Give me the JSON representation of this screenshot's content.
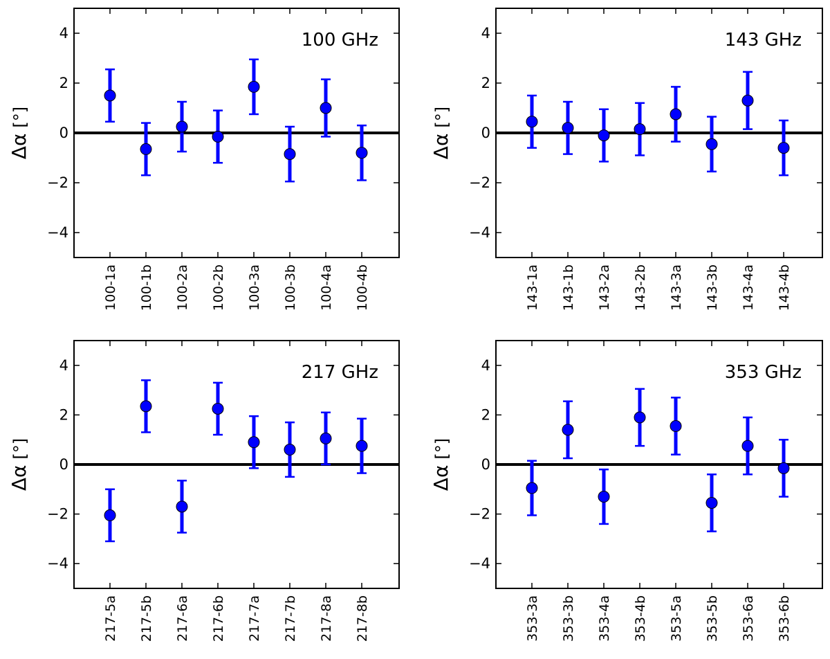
{
  "chart_data": [
    {
      "type": "scatter",
      "title": "100 GHz",
      "ylabel": {
        "symbol": "Δα",
        "unit": "[°]"
      },
      "ylim": [
        -5,
        5
      ],
      "yticks": [
        -4,
        -2,
        0,
        2,
        4
      ],
      "ytick_labels": [
        "−4",
        "−2",
        "0",
        "2",
        "4"
      ],
      "reference_line": 0,
      "categories": [
        "100-1a",
        "100-1b",
        "100-2a",
        "100-2b",
        "100-3a",
        "100-3b",
        "100-4a",
        "100-4b"
      ],
      "values": [
        1.5,
        -0.65,
        0.25,
        -0.15,
        1.85,
        -0.85,
        1.0,
        -0.8
      ],
      "errors": [
        1.05,
        1.05,
        1.0,
        1.05,
        1.1,
        1.1,
        1.15,
        1.1
      ],
      "point_color": "#0000ff",
      "error_color": "#0000ff"
    },
    {
      "type": "scatter",
      "title": "143 GHz",
      "ylabel": {
        "symbol": "Δα",
        "unit": "[°]"
      },
      "ylim": [
        -5,
        5
      ],
      "yticks": [
        -4,
        -2,
        0,
        2,
        4
      ],
      "ytick_labels": [
        "−4",
        "−2",
        "0",
        "2",
        "4"
      ],
      "reference_line": 0,
      "categories": [
        "143-1a",
        "143-1b",
        "143-2a",
        "143-2b",
        "143-3a",
        "143-3b",
        "143-4a",
        "143-4b"
      ],
      "values": [
        0.45,
        0.2,
        -0.1,
        0.15,
        0.75,
        -0.45,
        1.3,
        -0.6
      ],
      "errors": [
        1.05,
        1.05,
        1.05,
        1.05,
        1.1,
        1.1,
        1.15,
        1.1
      ],
      "point_color": "#0000ff",
      "error_color": "#0000ff"
    },
    {
      "type": "scatter",
      "title": "217 GHz",
      "ylabel": {
        "symbol": "Δα",
        "unit": "[°]"
      },
      "ylim": [
        -5,
        5
      ],
      "yticks": [
        -4,
        -2,
        0,
        2,
        4
      ],
      "ytick_labels": [
        "−4",
        "−2",
        "0",
        "2",
        "4"
      ],
      "reference_line": 0,
      "categories": [
        "217-5a",
        "217-5b",
        "217-6a",
        "217-6b",
        "217-7a",
        "217-7b",
        "217-8a",
        "217-8b"
      ],
      "values": [
        -2.05,
        2.35,
        -1.7,
        2.25,
        0.9,
        0.6,
        1.05,
        0.75
      ],
      "errors": [
        1.05,
        1.05,
        1.05,
        1.05,
        1.05,
        1.1,
        1.05,
        1.1
      ],
      "point_color": "#0000ff",
      "error_color": "#0000ff"
    },
    {
      "type": "scatter",
      "title": "353 GHz",
      "ylabel": {
        "symbol": "Δα",
        "unit": "[°]"
      },
      "ylim": [
        -5,
        5
      ],
      "yticks": [
        -4,
        -2,
        0,
        2,
        4
      ],
      "ytick_labels": [
        "−4",
        "−2",
        "0",
        "2",
        "4"
      ],
      "reference_line": 0,
      "categories": [
        "353-3a",
        "353-3b",
        "353-4a",
        "353-4b",
        "353-5a",
        "353-5b",
        "353-6a",
        "353-6b"
      ],
      "values": [
        -0.95,
        1.4,
        -1.3,
        1.9,
        1.55,
        -1.55,
        0.75,
        -0.15
      ],
      "errors": [
        1.1,
        1.15,
        1.1,
        1.15,
        1.15,
        1.15,
        1.15,
        1.15
      ],
      "point_color": "#0000ff",
      "error_color": "#0000ff"
    }
  ]
}
